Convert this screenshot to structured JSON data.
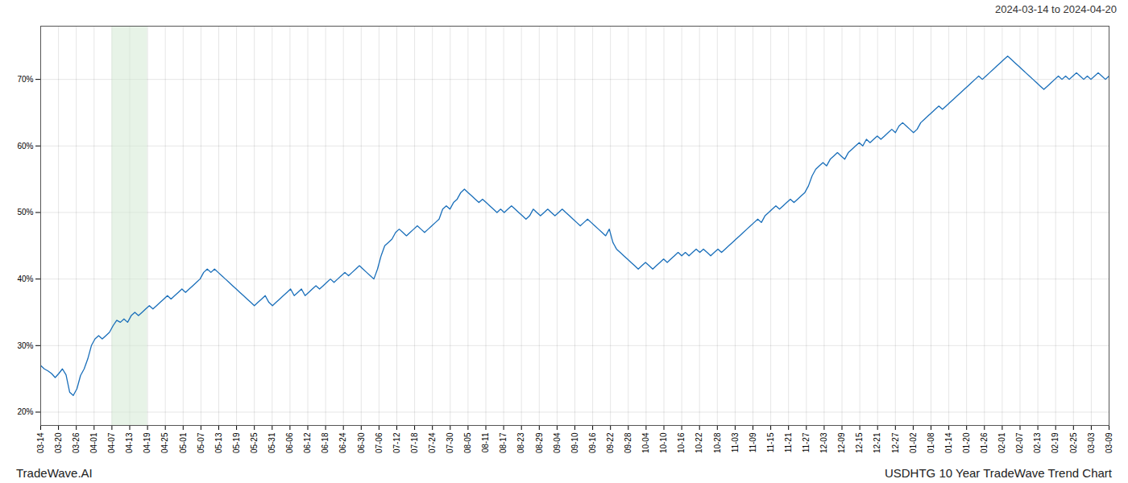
{
  "chart_data": {
    "type": "line",
    "title": "USDHTG 10 Year TradeWave Trend Chart",
    "subtitle": "2024-03-14 to 2024-04-20",
    "annotations": [
      "TradeWave.AI"
    ],
    "color": "#1a6fba",
    "grid": true,
    "xlim": [
      0,
      295
    ],
    "xticks": [
      {
        "value": 0,
        "label": "03-14"
      },
      {
        "value": 4.916667,
        "label": "03-20"
      },
      {
        "value": 9.833333,
        "label": "03-26"
      },
      {
        "value": 14.75,
        "label": "04-01"
      },
      {
        "value": 19.666667,
        "label": "04-07"
      },
      {
        "value": 24.583333,
        "label": "04-13"
      },
      {
        "value": 29.5,
        "label": "04-19"
      },
      {
        "value": 34.416667,
        "label": "04-25"
      },
      {
        "value": 39.333333,
        "label": "05-01"
      },
      {
        "value": 44.25,
        "label": "05-07"
      },
      {
        "value": 49.166667,
        "label": "05-13"
      },
      {
        "value": 54.083333,
        "label": "05-19"
      },
      {
        "value": 59,
        "label": "05-25"
      },
      {
        "value": 63.916667,
        "label": "05-31"
      },
      {
        "value": 68.833333,
        "label": "06-06"
      },
      {
        "value": 73.75,
        "label": "06-12"
      },
      {
        "value": 78.666667,
        "label": "06-18"
      },
      {
        "value": 83.583333,
        "label": "06-24"
      },
      {
        "value": 88.5,
        "label": "06-30"
      },
      {
        "value": 93.416667,
        "label": "07-06"
      },
      {
        "value": 98.333333,
        "label": "07-12"
      },
      {
        "value": 103.25,
        "label": "07-18"
      },
      {
        "value": 108.166667,
        "label": "07-24"
      },
      {
        "value": 113.083333,
        "label": "07-30"
      },
      {
        "value": 118,
        "label": "08-05"
      },
      {
        "value": 122.916667,
        "label": "08-11"
      },
      {
        "value": 127.833333,
        "label": "08-17"
      },
      {
        "value": 132.75,
        "label": "08-23"
      },
      {
        "value": 137.666667,
        "label": "08-29"
      },
      {
        "value": 142.583333,
        "label": "09-04"
      },
      {
        "value": 147.5,
        "label": "09-10"
      },
      {
        "value": 152.416667,
        "label": "09-16"
      },
      {
        "value": 157.333333,
        "label": "09-22"
      },
      {
        "value": 162.25,
        "label": "09-28"
      },
      {
        "value": 167.166667,
        "label": "10-04"
      },
      {
        "value": 172.083333,
        "label": "10-10"
      },
      {
        "value": 177,
        "label": "10-16"
      },
      {
        "value": 181.916667,
        "label": "10-22"
      },
      {
        "value": 186.833333,
        "label": "10-28"
      },
      {
        "value": 191.75,
        "label": "11-03"
      },
      {
        "value": 196.666667,
        "label": "11-09"
      },
      {
        "value": 201.583333,
        "label": "11-15"
      },
      {
        "value": 206.5,
        "label": "11-21"
      },
      {
        "value": 211.416667,
        "label": "11-27"
      },
      {
        "value": 216.333333,
        "label": "12-03"
      },
      {
        "value": 221.25,
        "label": "12-09"
      },
      {
        "value": 226.166667,
        "label": "12-15"
      },
      {
        "value": 231.083333,
        "label": "12-21"
      },
      {
        "value": 236,
        "label": "12-27"
      },
      {
        "value": 240.916667,
        "label": "01-02"
      },
      {
        "value": 245.833333,
        "label": "01-08"
      },
      {
        "value": 250.75,
        "label": "01-14"
      },
      {
        "value": 255.666667,
        "label": "01-20"
      },
      {
        "value": 260.583333,
        "label": "01-26"
      },
      {
        "value": 265.5,
        "label": "02-01"
      },
      {
        "value": 270.416667,
        "label": "02-07"
      },
      {
        "value": 275.333333,
        "label": "02-13"
      },
      {
        "value": 280.25,
        "label": "02-19"
      },
      {
        "value": 285.166667,
        "label": "02-25"
      },
      {
        "value": 290.083333,
        "label": "03-03"
      },
      {
        "value": 295,
        "label": "03-09"
      }
    ],
    "shaded_range": {
      "from": "04-07",
      "to": "04-19",
      "color": "#d4ead4"
    },
    "ylim": [
      18,
      78
    ],
    "yticks": [
      {
        "value": 20,
        "label": "20%"
      },
      {
        "value": 30,
        "label": "30%"
      },
      {
        "value": 40,
        "label": "40%"
      },
      {
        "value": 50,
        "label": "50%"
      },
      {
        "value": 60,
        "label": "60%"
      },
      {
        "value": 70,
        "label": "70%"
      }
    ],
    "values": [
      27.0,
      26.5,
      26.2,
      25.8,
      25.2,
      25.8,
      26.5,
      25.6,
      23.0,
      22.5,
      23.5,
      25.5,
      26.5,
      28.0,
      30.0,
      31.0,
      31.5,
      31.0,
      31.5,
      32.0,
      33.0,
      33.8,
      33.5,
      34.0,
      33.5,
      34.5,
      35.0,
      34.5,
      35.0,
      35.5,
      36.0,
      35.5,
      36.0,
      36.5,
      37.0,
      37.5,
      37.0,
      37.5,
      38.0,
      38.5,
      38.0,
      38.5,
      39.0,
      39.5,
      40.0,
      41.0,
      41.5,
      41.0,
      41.5,
      41.0,
      40.5,
      40.0,
      39.5,
      39.0,
      38.5,
      38.0,
      37.5,
      37.0,
      36.5,
      36.0,
      36.5,
      37.0,
      37.5,
      36.5,
      36.0,
      36.5,
      37.0,
      37.5,
      38.0,
      38.5,
      37.5,
      38.0,
      38.5,
      37.5,
      38.0,
      38.5,
      39.0,
      38.5,
      39.0,
      39.5,
      40.0,
      39.5,
      40.0,
      40.5,
      41.0,
      40.5,
      41.0,
      41.5,
      42.0,
      41.5,
      41.0,
      40.5,
      40.0,
      41.5,
      43.5,
      45.0,
      45.5,
      46.0,
      47.0,
      47.5,
      47.0,
      46.5,
      47.0,
      47.5,
      48.0,
      47.5,
      47.0,
      47.5,
      48.0,
      48.5,
      49.0,
      50.5,
      51.0,
      50.5,
      51.5,
      52.0,
      53.0,
      53.5,
      53.0,
      52.5,
      52.0,
      51.5,
      52.0,
      51.5,
      51.0,
      50.5,
      50.0,
      50.5,
      50.0,
      50.5,
      51.0,
      50.5,
      50.0,
      49.5,
      49.0,
      49.5,
      50.5,
      50.0,
      49.5,
      50.0,
      50.5,
      50.0,
      49.5,
      50.0,
      50.5,
      50.0,
      49.5,
      49.0,
      48.5,
      48.0,
      48.5,
      49.0,
      48.5,
      48.0,
      47.5,
      47.0,
      46.5,
      47.5,
      45.5,
      44.5,
      44.0,
      43.5,
      43.0,
      42.5,
      42.0,
      41.5,
      42.0,
      42.5,
      42.0,
      41.5,
      42.0,
      42.5,
      43.0,
      42.5,
      43.0,
      43.5,
      44.0,
      43.5,
      44.0,
      43.5,
      44.0,
      44.5,
      44.0,
      44.5,
      44.0,
      43.5,
      44.0,
      44.5,
      44.0,
      44.5,
      45.0,
      45.5,
      46.0,
      46.5,
      47.0,
      47.5,
      48.0,
      48.5,
      49.0,
      48.5,
      49.5,
      50.0,
      50.5,
      51.0,
      50.5,
      51.0,
      51.5,
      52.0,
      51.5,
      52.0,
      52.5,
      53.0,
      54.0,
      55.5,
      56.5,
      57.0,
      57.5,
      57.0,
      58.0,
      58.5,
      59.0,
      58.5,
      58.0,
      59.0,
      59.5,
      60.0,
      60.5,
      60.0,
      61.0,
      60.5,
      61.0,
      61.5,
      61.0,
      61.5,
      62.0,
      62.5,
      62.0,
      63.0,
      63.5,
      63.0,
      62.5,
      62.0,
      62.5,
      63.5,
      64.0,
      64.5,
      65.0,
      65.5,
      66.0,
      65.5,
      66.0,
      66.5,
      67.0,
      67.5,
      68.0,
      68.5,
      69.0,
      69.5,
      70.0,
      70.5,
      70.0,
      70.5,
      71.0,
      71.5,
      72.0,
      72.5,
      73.0,
      73.5,
      73.0,
      72.5,
      72.0,
      71.5,
      71.0,
      70.5,
      70.0,
      69.5,
      69.0,
      68.5,
      69.0,
      69.5,
      70.0,
      70.5,
      70.0,
      70.5,
      70.0,
      70.5,
      71.0,
      70.5,
      70.0,
      70.5,
      70.0,
      70.5,
      71.0,
      70.5,
      70.0,
      70.5
    ]
  }
}
